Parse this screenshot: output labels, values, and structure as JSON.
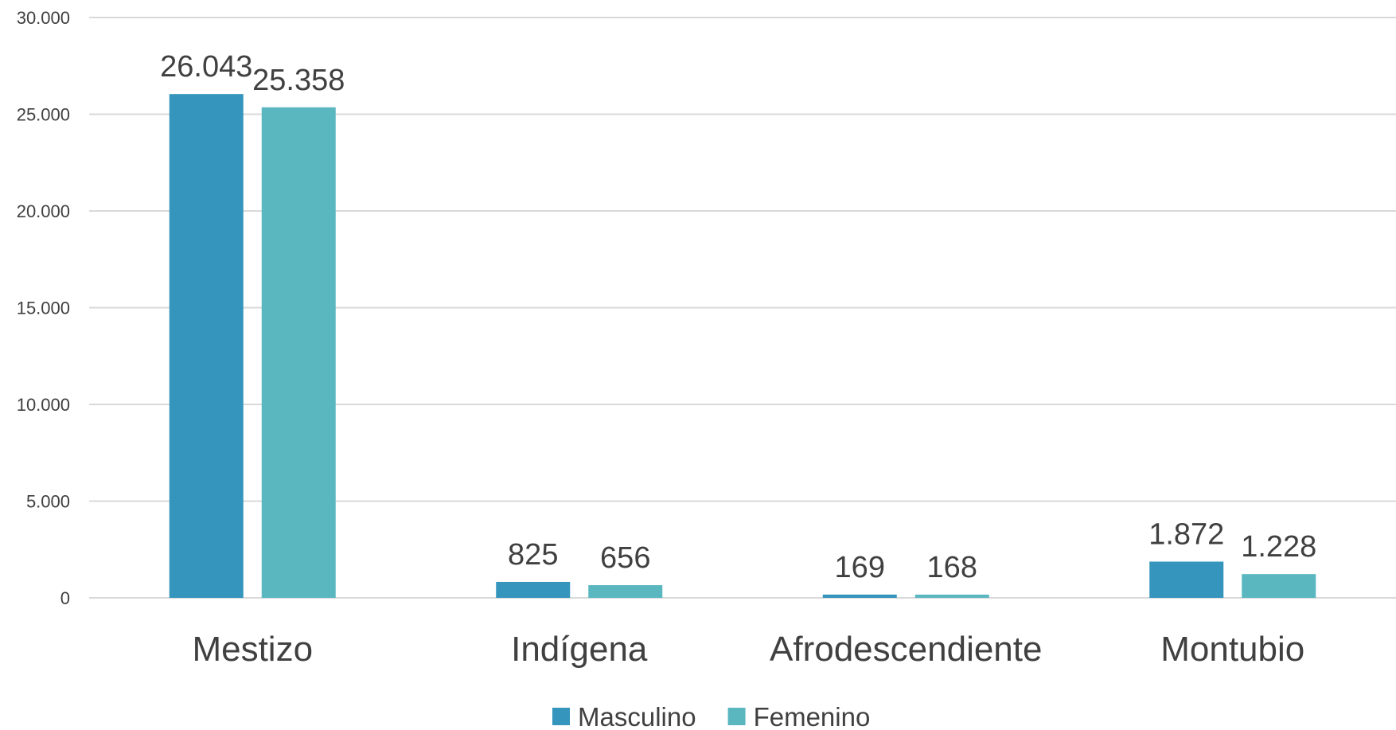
{
  "chart_data": {
    "type": "bar",
    "categories": [
      "Mestizo",
      "Indígena",
      "Afrodescendiente",
      "Montubio"
    ],
    "series": [
      {
        "name": "Masculino",
        "color": "#3595bc",
        "values": [
          26043,
          825,
          169,
          1872
        ],
        "value_labels": [
          "26.043",
          "825",
          "169",
          "1.872"
        ]
      },
      {
        "name": "Femenino",
        "color": "#5ab7c0",
        "values": [
          25358,
          656,
          168,
          1228
        ],
        "value_labels": [
          "25.358",
          "656",
          "168",
          "1.228"
        ]
      }
    ],
    "ylim": [
      0,
      30000
    ],
    "yticks": [
      0,
      {
        "value": 5000,
        "label": "5.000"
      },
      {
        "value": 10000,
        "label": "10.000"
      },
      {
        "value": 15000,
        "label": "15.000"
      },
      {
        "value": 20000,
        "label": "20.000"
      },
      {
        "value": 25000,
        "label": "25.000"
      },
      {
        "value": 30000,
        "label": "30.000"
      }
    ],
    "grid": true,
    "legend": "bottom"
  }
}
